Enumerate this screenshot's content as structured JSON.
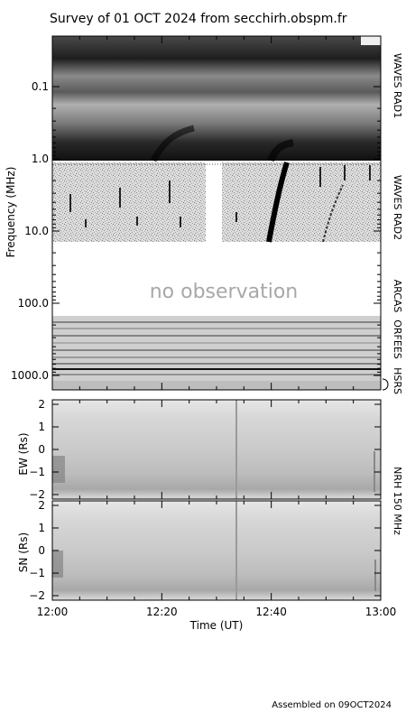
{
  "title": "Survey of 01 OCT 2024 from secchirh.obspm.fr",
  "footer": "Assembled on 09OCT2024",
  "no_observation": "no observation",
  "chart_data": [
    {
      "type": "heatmap",
      "name": "spectrogram",
      "ylabel": "Frequency (MHz)",
      "y_scale": "log",
      "y_reversed": true,
      "yticks": [
        {
          "value": 0.1,
          "label": "0.1"
        },
        {
          "value": 1.0,
          "label": "1.0"
        },
        {
          "value": 10.0,
          "label": "10.0"
        },
        {
          "value": 100.0,
          "label": "100.0"
        },
        {
          "value": 1000.0,
          "label": "1000.0"
        }
      ],
      "instruments": [
        {
          "label": "WAVES RAD1"
        },
        {
          "label": "WAVES RAD2"
        },
        {
          "label": "ARCAS"
        },
        {
          "label": "ORFEES"
        },
        {
          "label": "HSRS"
        }
      ]
    },
    {
      "type": "heatmap",
      "name": "nrh-ew",
      "ylabel": "EW (Rs)",
      "ylim": [
        -2.2,
        2.2
      ],
      "yticks": [
        2,
        1,
        0,
        -1,
        -2
      ]
    },
    {
      "type": "heatmap",
      "name": "nrh-sn",
      "ylabel": "SN (Rs)",
      "ylim": [
        -2.2,
        2.2
      ],
      "yticks": [
        2,
        1,
        0,
        -1,
        -2
      ]
    }
  ],
  "nrh_label": "NRH 150 MHz",
  "time_axis": {
    "xlabel": "Time (UT)",
    "ticks": [
      "12:00",
      "12:20",
      "12:40",
      "13:00"
    ]
  }
}
